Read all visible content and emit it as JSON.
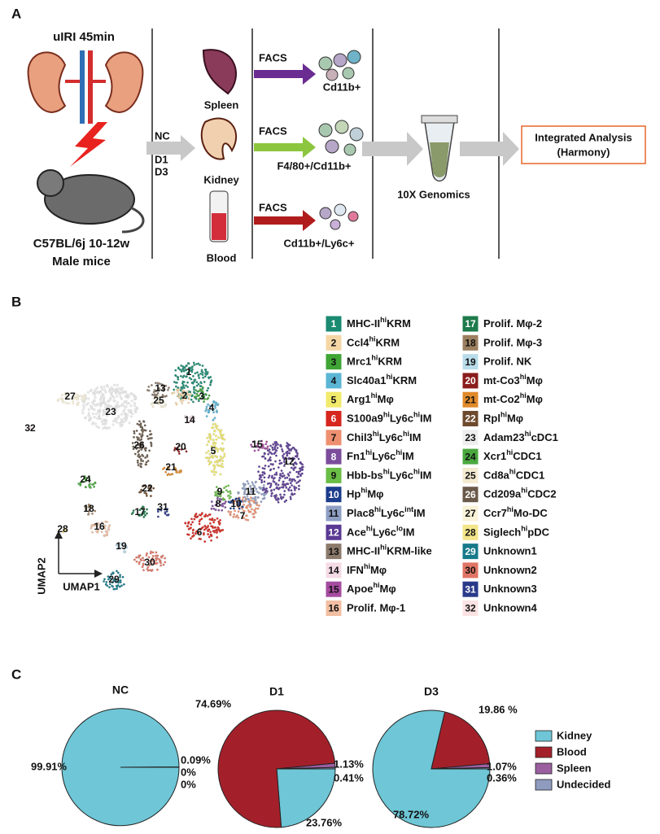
{
  "panel_labels": [
    "A",
    "B",
    "C"
  ],
  "panel_a": {
    "injury": "uIRI 45min",
    "mouse": [
      "C57BL/6j 10-12w",
      "Male mice"
    ],
    "timepoints": [
      "NC",
      "D1",
      "D3"
    ],
    "tissues": [
      "Spleen",
      "Kidney",
      "Blood"
    ],
    "sorting": [
      "FACS",
      "FACS",
      "FACS"
    ],
    "markers": [
      "Cd11b+",
      "F4/80+/Cd11b+",
      "Cd11b+/Ly6c+"
    ],
    "sequencing": "10X Genomics",
    "analysis": [
      "Integrated Analysis",
      "(Harmony)"
    ]
  },
  "panel_b": {
    "x_axis": "UMAP1",
    "y_axis": "UMAP2",
    "clusters": [
      {
        "id": 1,
        "name": [
          "MHC-II",
          "hi",
          "KRM"
        ],
        "color": "#1a8a72"
      },
      {
        "id": 2,
        "name": [
          "Ccl4",
          "hi",
          "KRM"
        ],
        "color": "#f5d7a6"
      },
      {
        "id": 3,
        "name": [
          "Mrc1",
          "hi",
          "KRM"
        ],
        "color": "#3fa535"
      },
      {
        "id": 4,
        "name": [
          "Slc40a1",
          "hi",
          "KRM"
        ],
        "color": "#5bb6d6"
      },
      {
        "id": 5,
        "name": [
          "Arg1",
          "hi",
          "Mφ"
        ],
        "color": "#f1ea6b"
      },
      {
        "id": 6,
        "name": [
          "S100a9",
          "hi",
          "Ly6c",
          "hi",
          "IM"
        ],
        "color": "#d7261e"
      },
      {
        "id": 7,
        "name": [
          "Chil3",
          "hi",
          "Ly6c",
          "hi",
          "IM"
        ],
        "color": "#ee9070"
      },
      {
        "id": 8,
        "name": [
          "Fn1",
          "hi",
          "Ly6c",
          "hi",
          "IM"
        ],
        "color": "#7b4c9b"
      },
      {
        "id": 9,
        "name": [
          "Hbb-bs",
          "hi",
          "Ly6c",
          "hi",
          "IM"
        ],
        "color": "#6abd45"
      },
      {
        "id": 10,
        "name": [
          "Hp",
          "hi",
          "Mφ"
        ],
        "color": "#1c3c8c"
      },
      {
        "id": 11,
        "name": [
          "Plac8",
          "hi",
          "Ly6c",
          "int",
          "IM"
        ],
        "color": "#8e9fc4"
      },
      {
        "id": 12,
        "name": [
          "Ace",
          "hi",
          "Ly6c",
          "lo",
          "IM"
        ],
        "color": "#5a3a94"
      },
      {
        "id": 13,
        "name": [
          "MHC-II",
          "hi",
          "KRM-like"
        ],
        "color": "#8c7a6b"
      },
      {
        "id": 14,
        "name": [
          "IFN",
          "hi",
          "Mφ"
        ],
        "color": "#f5dbe6"
      },
      {
        "id": 15,
        "name": [
          "Apoe",
          "hi",
          "Mφ"
        ],
        "color": "#a64ca0"
      },
      {
        "id": 16,
        "name": [
          "Prolif. Mφ-1"
        ],
        "color": "#f2bfa2"
      },
      {
        "id": 17,
        "name": [
          "Prolif. Mφ-2"
        ],
        "color": "#1e7b4b"
      },
      {
        "id": 18,
        "name": [
          "Prolif. Mφ-3"
        ],
        "color": "#9c8060"
      },
      {
        "id": 19,
        "name": [
          "Prolif. NK"
        ],
        "color": "#b9dcea"
      },
      {
        "id": 20,
        "name": [
          "mt-Co3",
          "hi",
          "Mφ"
        ],
        "color": "#8a1c1c"
      },
      {
        "id": 21,
        "name": [
          "mt-Co2",
          "hi",
          "Mφ"
        ],
        "color": "#e08a2a"
      },
      {
        "id": 22,
        "name": [
          "Rpl",
          "hi",
          "Mφ"
        ],
        "color": "#6e4a2c"
      },
      {
        "id": 23,
        "name": [
          "Adam23",
          "hi",
          "cDC1"
        ],
        "color": "#eeeeee"
      },
      {
        "id": 24,
        "name": [
          "Xcr1",
          "hi",
          "CDC1"
        ],
        "color": "#4aa83f"
      },
      {
        "id": 25,
        "name": [
          "Cd8a",
          "hi",
          "CDC1"
        ],
        "color": "#f3ead0"
      },
      {
        "id": 26,
        "name": [
          "Cd209a",
          "hi",
          "CDC2"
        ],
        "color": "#6a5a4a"
      },
      {
        "id": 27,
        "name": [
          "Ccr7",
          "hi",
          "Mo-DC"
        ],
        "color": "#fbf3d8"
      },
      {
        "id": 28,
        "name": [
          "Siglech",
          "hi",
          "pDC"
        ],
        "color": "#f3e58a"
      },
      {
        "id": 29,
        "name": [
          "Unknown1"
        ],
        "color": "#177a8a"
      },
      {
        "id": 30,
        "name": [
          "Unknown2"
        ],
        "color": "#e07565"
      },
      {
        "id": 31,
        "name": [
          "Unknown3"
        ],
        "color": "#2a3a8a"
      },
      {
        "id": 32,
        "name": [
          "Unknown4"
        ],
        "color": "#fbe3e3"
      }
    ]
  },
  "chart_data": {
    "type": "pie",
    "categories": [
      "Kidney",
      "Blood",
      "Spleen",
      "Undecided"
    ],
    "colors": [
      "#6ec6d6",
      "#a3202a",
      "#9b5fa0",
      "#8f9cc0"
    ],
    "legend": "right",
    "pies": [
      {
        "title": "NC",
        "values": [
          99.91,
          0.09,
          0,
          0
        ],
        "value_labels": [
          "99.91%",
          "0.09%",
          "0%",
          "0%"
        ]
      },
      {
        "title": "D1",
        "values": [
          23.76,
          74.69,
          1.13,
          0.41
        ],
        "value_labels": [
          "23.76%",
          "74.69%",
          "1.13%",
          "0.41%"
        ]
      },
      {
        "title": "D3",
        "values": [
          78.72,
          19.86,
          1.07,
          0.36
        ],
        "value_labels": [
          "78.72%",
          "19.86 %",
          "1.07%",
          "0.36%"
        ]
      }
    ]
  }
}
